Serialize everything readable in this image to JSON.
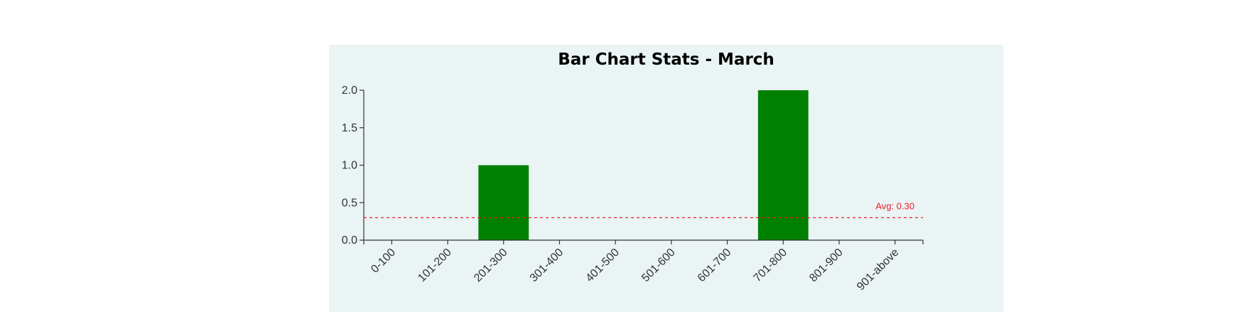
{
  "chart_data": {
    "type": "bar",
    "title": "Bar Chart Stats - March",
    "categories": [
      "0-100",
      "101-200",
      "201-300",
      "301-400",
      "401-500",
      "501-600",
      "601-700",
      "701-800",
      "801-900",
      "901-above"
    ],
    "values": [
      0,
      0,
      1,
      0,
      0,
      0,
      0,
      2,
      0,
      0
    ],
    "ylim": [
      0,
      2.0
    ],
    "yticks": [
      "0.0",
      "0.5",
      "1.0",
      "1.5",
      "2.0"
    ],
    "xlabel": "",
    "ylabel": "",
    "grid": false,
    "bar_color": "#008000",
    "average": {
      "value": 0.3,
      "label": "Avg: 0.30",
      "color": "#e8212b"
    }
  }
}
